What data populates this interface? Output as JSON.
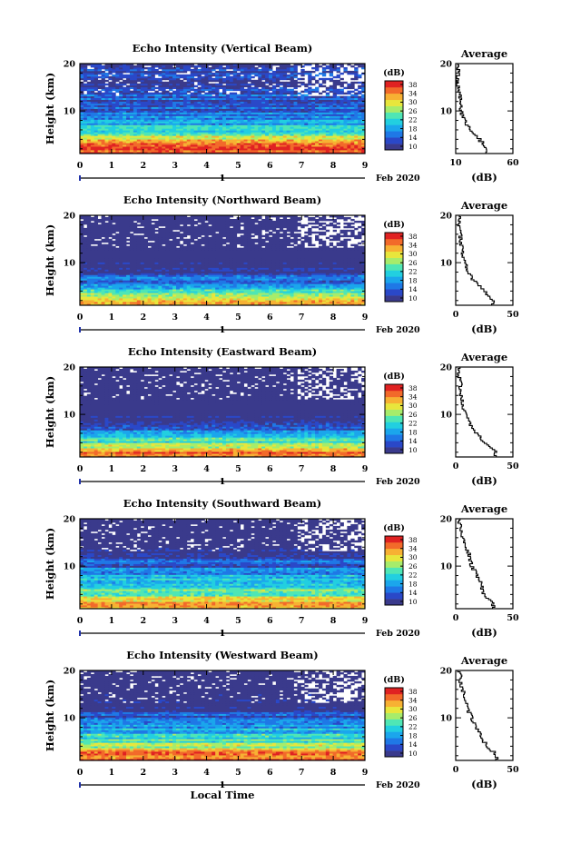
{
  "figure": {
    "colors": [
      "#3a3a8c",
      "#2a48c8",
      "#1f78e6",
      "#1ba6ec",
      "#22cfe0",
      "#4fe6b5",
      "#a7ec6b",
      "#e8e63c",
      "#f7b133",
      "#f26a2a",
      "#e02222"
    ],
    "height_ticks": [
      "20",
      "10"
    ],
    "time_ticks": [
      "0",
      "1",
      "2",
      "3",
      "4",
      "5",
      "6",
      "7",
      "8",
      "9"
    ],
    "day_label": "1",
    "date_label": "Feb 2020",
    "colorbar_unit": "(dB)",
    "colorbar_ticks": [
      "38",
      "34",
      "30",
      "26",
      "22",
      "18",
      "14",
      "10"
    ],
    "ylabel": "Height (km)",
    "xlabel": "Local Time",
    "avg_title": "Average",
    "avg_xlabel": "(dB)"
  },
  "chart_data": [
    {
      "type": "heatmap",
      "title": "Echo Intensity (Vertical Beam)",
      "x_unit": "Local Time (h)",
      "xlim": [
        0,
        9
      ],
      "y_unit": "Height (km)",
      "ylim": [
        1,
        20
      ],
      "z_unit": "dB",
      "zlim": [
        10,
        38
      ],
      "profile_heights": [
        2,
        4,
        6,
        8,
        10,
        12,
        14,
        16,
        18,
        20
      ],
      "profile_db": [
        37,
        30,
        22,
        17,
        15,
        14,
        13,
        12,
        12,
        11
      ],
      "avg_xlim": [
        10,
        60
      ],
      "avg_xticks": [
        "10",
        "60"
      ]
    },
    {
      "type": "heatmap",
      "title": "Echo Intensity (Northward Beam)",
      "x_unit": "Local Time (h)",
      "xlim": [
        0,
        9
      ],
      "y_unit": "Height (km)",
      "ylim": [
        1,
        20
      ],
      "z_unit": "dB",
      "zlim": [
        10,
        38
      ],
      "profile_heights": [
        2,
        4,
        6,
        8,
        10,
        12,
        14,
        16,
        18,
        20
      ],
      "profile_db": [
        32,
        24,
        16,
        11,
        8,
        6,
        5,
        4,
        3,
        3
      ],
      "avg_xlim": [
        0,
        50
      ],
      "avg_xticks": [
        "0",
        "50"
      ]
    },
    {
      "type": "heatmap",
      "title": "Echo Intensity (Eastward Beam)",
      "x_unit": "Local Time (h)",
      "xlim": [
        0,
        9
      ],
      "y_unit": "Height (km)",
      "ylim": [
        1,
        20
      ],
      "z_unit": "dB",
      "zlim": [
        10,
        38
      ],
      "profile_heights": [
        2,
        4,
        6,
        8,
        10,
        12,
        14,
        16,
        18,
        20
      ],
      "profile_db": [
        35,
        25,
        17,
        12,
        8,
        6,
        5,
        4,
        3,
        3
      ],
      "avg_xlim": [
        0,
        50
      ],
      "avg_xticks": [
        "0",
        "50"
      ]
    },
    {
      "type": "heatmap",
      "title": "Echo Intensity (Southward Beam)",
      "x_unit": "Local Time (h)",
      "xlim": [
        0,
        9
      ],
      "y_unit": "Height (km)",
      "ylim": [
        1,
        20
      ],
      "z_unit": "dB",
      "zlim": [
        10,
        38
      ],
      "profile_heights": [
        2,
        4,
        6,
        8,
        10,
        12,
        14,
        16,
        18,
        20
      ],
      "profile_db": [
        33,
        25,
        22,
        18,
        14,
        12,
        9,
        6,
        4,
        3
      ],
      "avg_xlim": [
        0,
        50
      ],
      "avg_xticks": [
        "0",
        "50"
      ]
    },
    {
      "type": "heatmap",
      "title": "Echo Intensity (Westward Beam)",
      "x_unit": "Local Time (h)",
      "xlim": [
        0,
        9
      ],
      "y_unit": "Height (km)",
      "ylim": [
        1,
        20
      ],
      "z_unit": "dB",
      "zlim": [
        10,
        38
      ],
      "profile_heights": [
        2,
        4,
        6,
        8,
        10,
        12,
        14,
        16,
        18,
        20
      ],
      "profile_db": [
        36,
        27,
        22,
        18,
        14,
        10,
        8,
        6,
        4,
        3
      ],
      "avg_xlim": [
        0,
        50
      ],
      "avg_xticks": [
        "0",
        "50"
      ]
    }
  ]
}
